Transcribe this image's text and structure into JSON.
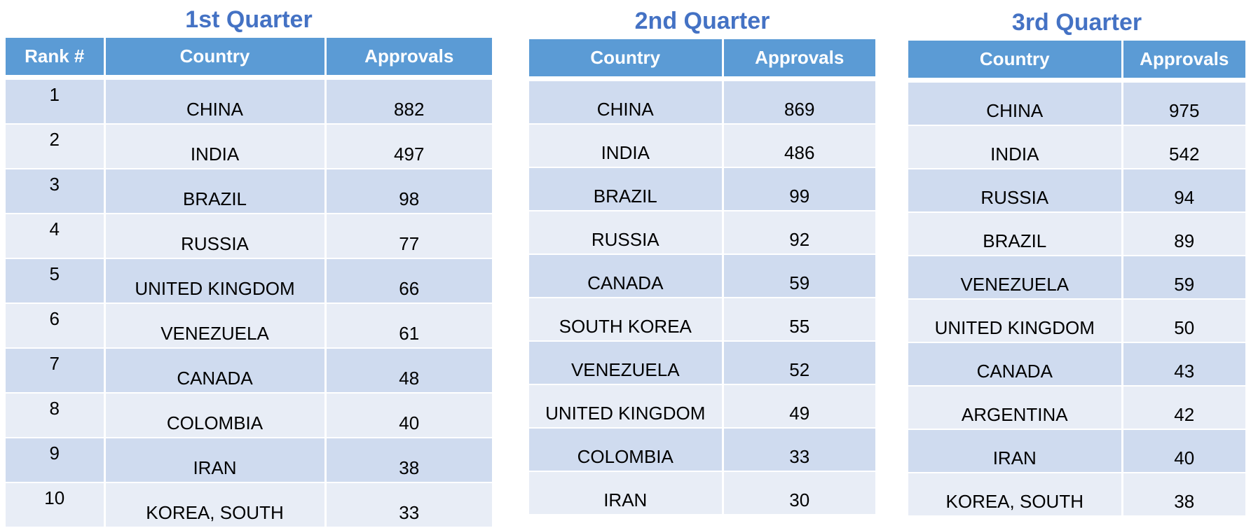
{
  "q1": {
    "title": "1st Quarter",
    "headers": [
      "Rank #",
      "Country",
      "Approvals"
    ],
    "rows": [
      {
        "rank": "1",
        "country": "CHINA",
        "approvals": "882"
      },
      {
        "rank": "2",
        "country": "INDIA",
        "approvals": "497"
      },
      {
        "rank": "3",
        "country": "BRAZIL",
        "approvals": "98"
      },
      {
        "rank": "4",
        "country": "RUSSIA",
        "approvals": "77"
      },
      {
        "rank": "5",
        "country": "UNITED KINGDOM",
        "approvals": "66"
      },
      {
        "rank": "6",
        "country": "VENEZUELA",
        "approvals": "61"
      },
      {
        "rank": "7",
        "country": "CANADA",
        "approvals": "48"
      },
      {
        "rank": "8",
        "country": "COLOMBIA",
        "approvals": "40"
      },
      {
        "rank": "9",
        "country": "IRAN",
        "approvals": "38"
      },
      {
        "rank": "10",
        "country": "KOREA, SOUTH",
        "approvals": "33"
      }
    ]
  },
  "q2": {
    "title": "2nd Quarter",
    "headers": [
      "Country",
      "Approvals"
    ],
    "rows": [
      {
        "country": "CHINA",
        "approvals": "869"
      },
      {
        "country": "INDIA",
        "approvals": "486"
      },
      {
        "country": "BRAZIL",
        "approvals": "99"
      },
      {
        "country": "RUSSIA",
        "approvals": "92"
      },
      {
        "country": "CANADA",
        "approvals": "59"
      },
      {
        "country": "SOUTH KOREA",
        "approvals": "55"
      },
      {
        "country": "VENEZUELA",
        "approvals": "52"
      },
      {
        "country": "UNITED KINGDOM",
        "approvals": "49"
      },
      {
        "country": "COLOMBIA",
        "approvals": "33"
      },
      {
        "country": "IRAN",
        "approvals": "30"
      }
    ]
  },
  "q3": {
    "title": "3rd Quarter",
    "headers": [
      "Country",
      "Approvals"
    ],
    "rows": [
      {
        "country": "CHINA",
        "approvals": "975"
      },
      {
        "country": "INDIA",
        "approvals": "542"
      },
      {
        "country": "RUSSIA",
        "approvals": "94"
      },
      {
        "country": "BRAZIL",
        "approvals": "89"
      },
      {
        "country": "VENEZUELA",
        "approvals": "59"
      },
      {
        "country": "UNITED KINGDOM",
        "approvals": "50"
      },
      {
        "country": "CANADA",
        "approvals": "43"
      },
      {
        "country": "ARGENTINA",
        "approvals": "42"
      },
      {
        "country": "IRAN",
        "approvals": "40"
      },
      {
        "country": "KOREA, SOUTH",
        "approvals": "38"
      }
    ]
  },
  "colors": {
    "title": "#4472c4",
    "header_bg": "#5b9bd5",
    "row_band_dark": "#cfdbef",
    "row_band_light": "#e8edf6"
  }
}
